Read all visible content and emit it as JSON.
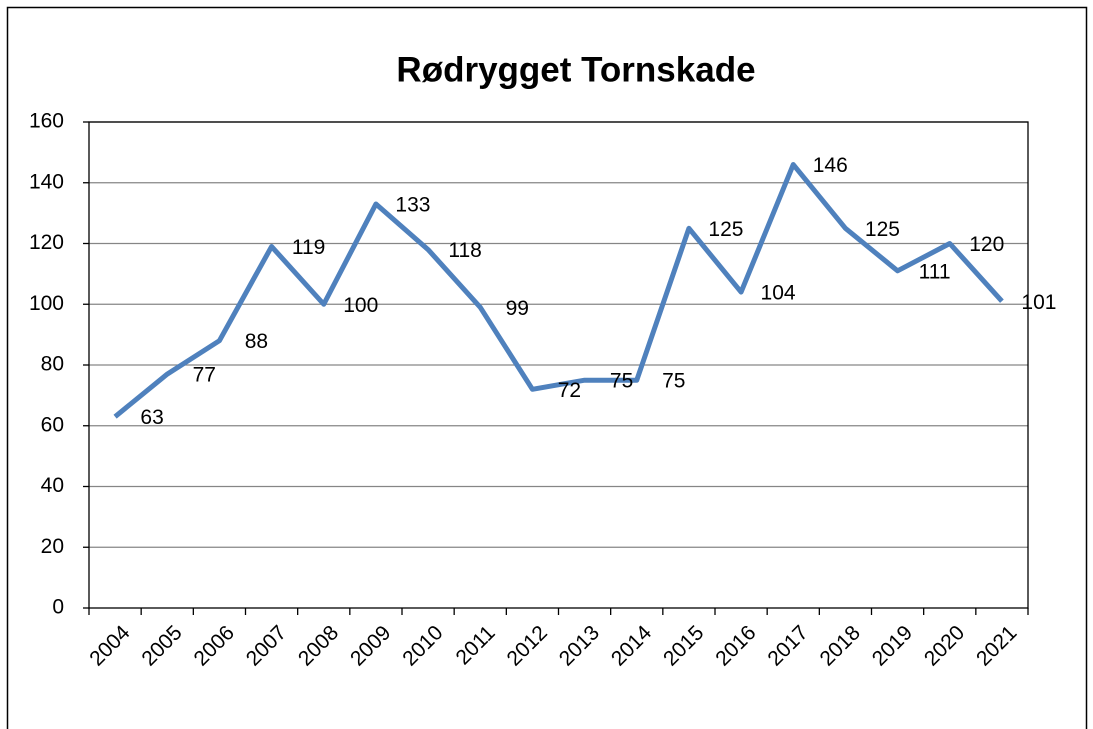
{
  "chart_data": {
    "type": "line",
    "title": "Rødrygget Tornskade",
    "categories": [
      "2004",
      "2005",
      "2006",
      "2007",
      "2008",
      "2009",
      "2010",
      "2011",
      "2012",
      "2013",
      "2014",
      "2015",
      "2016",
      "2017",
      "2018",
      "2019",
      "2020",
      "2021"
    ],
    "series": [
      {
        "name": "Rødrygget Tornskade",
        "color": "#4f81bd",
        "values": [
          63,
          77,
          88,
          119,
          100,
          133,
          118,
          99,
          72,
          75,
          75,
          125,
          104,
          146,
          125,
          111,
          120,
          101
        ]
      }
    ],
    "ylim": [
      0,
      160
    ],
    "yticks": [
      0,
      20,
      40,
      60,
      80,
      100,
      120,
      140,
      160
    ],
    "grid": true
  }
}
